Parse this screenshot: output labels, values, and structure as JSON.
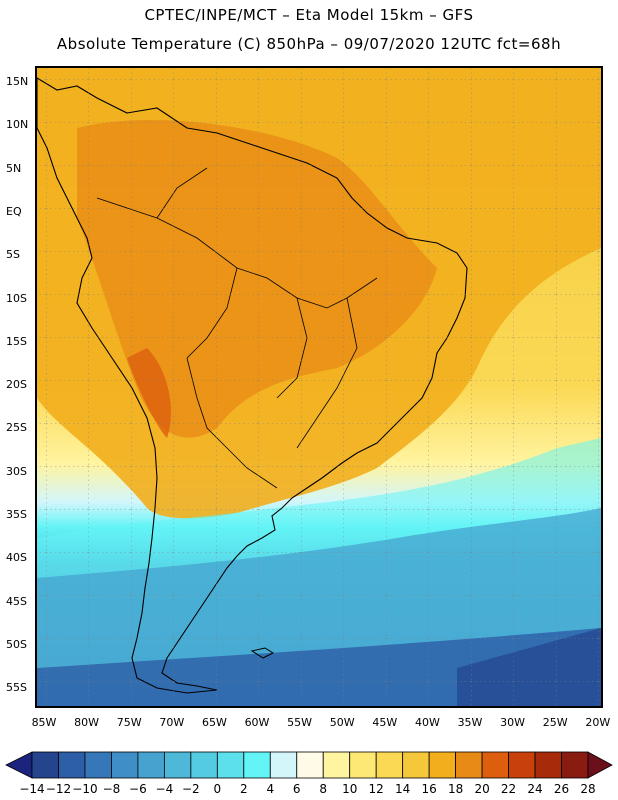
{
  "header": {
    "line1": "CPTEC/INPE/MCT –  Eta Model 15km – GFS",
    "line2": "Absolute Temperature (C) 850hPa – 09/07/2020 12UTC fct=68h"
  },
  "map": {
    "lat_labels": [
      "15N",
      "10N",
      "5N",
      "EQ",
      "5S",
      "10S",
      "15S",
      "20S",
      "25S",
      "30S",
      "35S",
      "40S",
      "45S",
      "50S",
      "55S"
    ],
    "lon_labels": [
      "85W",
      "80W",
      "75W",
      "70W",
      "65W",
      "60W",
      "55W",
      "50W",
      "45W",
      "40W",
      "35W",
      "30W",
      "25W",
      "20W"
    ],
    "lon_range": [
      -85,
      -20
    ],
    "lat_range": [
      -58,
      17
    ],
    "field": "Absolute Temperature (C) 850hPa"
  },
  "colorbar": {
    "labels": [
      "-14",
      "-12",
      "-10",
      "-8",
      "-6",
      "-4",
      "-2",
      "0",
      "2",
      "4",
      "6",
      "8",
      "10",
      "12",
      "14",
      "16",
      "18",
      "20",
      "22",
      "24",
      "26",
      "28"
    ],
    "under_color": "#1a237e",
    "over_color": "#6b0f1a",
    "colors": [
      "#24448e",
      "#2d5ea8",
      "#3677b9",
      "#3f8ec7",
      "#46a3cf",
      "#4db8d8",
      "#55cbe2",
      "#5ce0ec",
      "#63f4f6",
      "#d3f6fb",
      "#fffbe6",
      "#fff4a0",
      "#fde876",
      "#fbd955",
      "#f5c83c",
      "#f2ae1c",
      "#e88a16",
      "#dd5f0e",
      "#c8400a",
      "#a72a0a",
      "#8a1b10"
    ]
  }
}
